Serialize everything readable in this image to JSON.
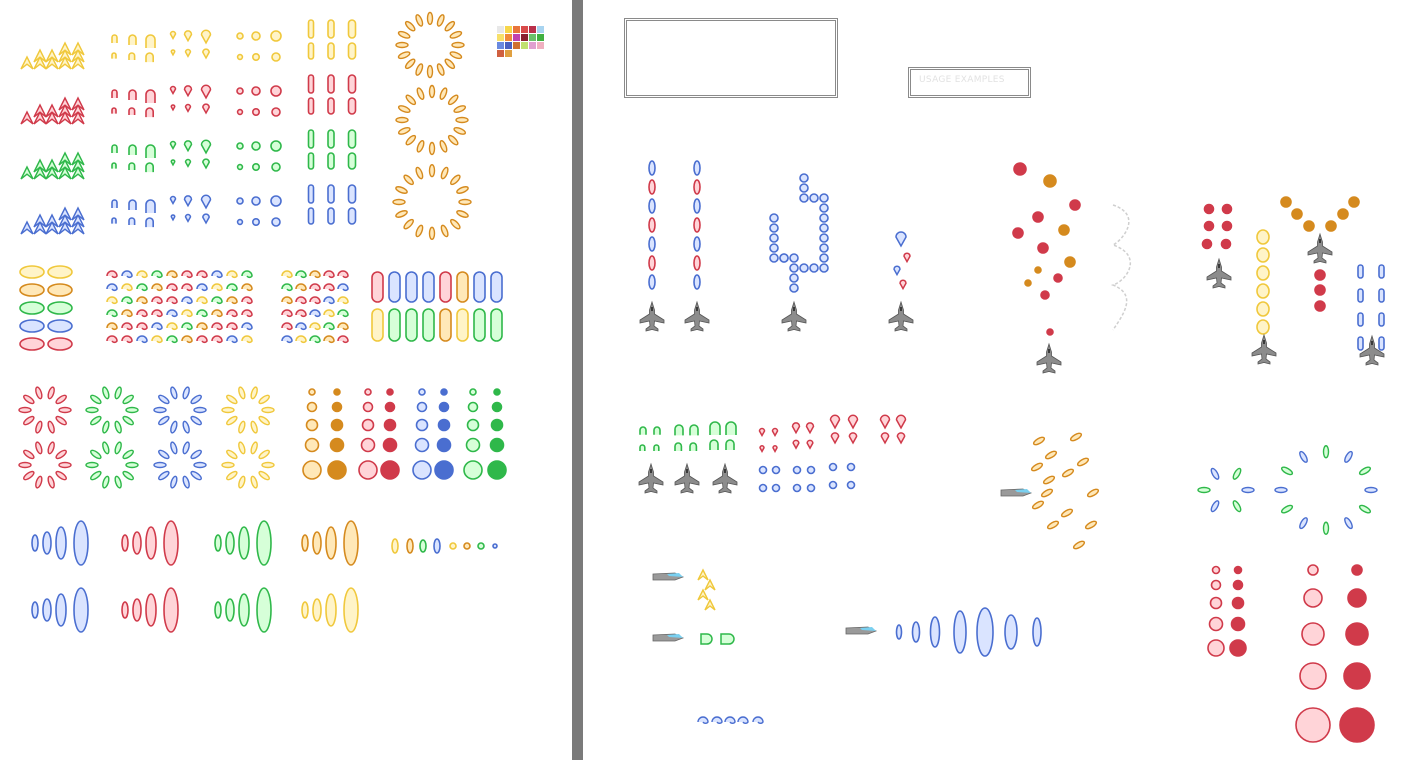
{
  "sheet": {
    "usage_label": "USAGE EXAMPLES",
    "palette": {
      "yellow": "#f0c83c",
      "yellow_fill": "#fff4c8",
      "red": "#d03a4a",
      "red_fill": "#ffd4d8",
      "green": "#2fb84a",
      "green_fill": "#d6ffd8",
      "blue": "#4a6ed0",
      "blue_fill": "#dae4ff",
      "orange": "#d58a1e",
      "orange_fill": "#ffe8b8",
      "magenta": "#c0204a",
      "jet": "#8a8a8a",
      "divider": "#7a7a7a"
    },
    "swatches": [
      "#e8e8e8",
      "#f7d64a",
      "#e8743a",
      "#d94a4a",
      "#b9304a",
      "#a8d4f0",
      "#f7e06a",
      "#f08a3a",
      "#c040b0",
      "#8a2030",
      "#6ac06a",
      "#40b040",
      "#6a8ae0",
      "#4a60c0",
      "#d07030",
      "#c0e070",
      "#e0a0d0",
      "#f0b0c0",
      "#d06040",
      "#e0a040"
    ]
  }
}
